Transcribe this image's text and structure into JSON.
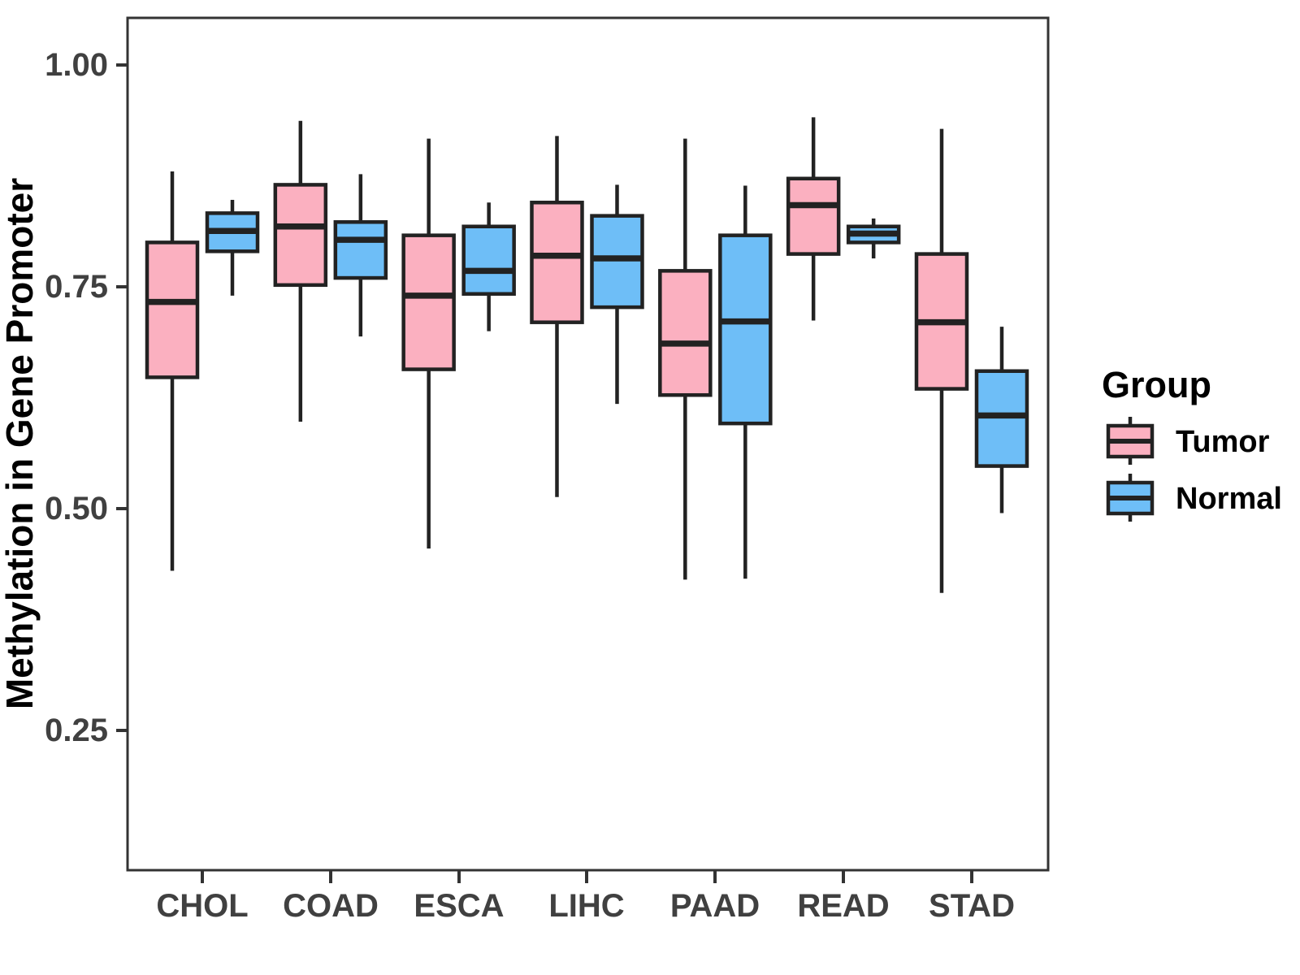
{
  "chart_data": {
    "type": "boxplot",
    "title": "",
    "xlabel": "",
    "ylabel": "Methylation in Gene Promoter",
    "categories": [
      "CHOL",
      "COAD",
      "ESCA",
      "LIHC",
      "PAAD",
      "READ",
      "STAD"
    ],
    "y_ticks": [
      "1.00",
      "0.75",
      "0.50",
      "0.25"
    ],
    "y_tick_values": [
      1.0,
      0.75,
      0.5,
      0.25
    ],
    "ylim": [
      0.09,
      1.05
    ],
    "grid": "off",
    "legend": {
      "title": "Group",
      "position": "right",
      "entries": [
        {
          "label": "Tumor",
          "color": "#FBB0C0"
        },
        {
          "label": "Normal",
          "color": "#6EBEF7"
        }
      ]
    },
    "series": [
      {
        "name": "Tumor",
        "color": "#FBB0C0",
        "boxes": [
          {
            "category": "CHOL",
            "low": 0.43,
            "q1": 0.648,
            "median": 0.733,
            "q3": 0.8,
            "high": 0.88
          },
          {
            "category": "COAD",
            "low": 0.598,
            "q1": 0.752,
            "median": 0.818,
            "q3": 0.865,
            "high": 0.937
          },
          {
            "category": "ESCA",
            "low": 0.455,
            "q1": 0.657,
            "median": 0.74,
            "q3": 0.808,
            "high": 0.917
          },
          {
            "category": "LIHC",
            "low": 0.513,
            "q1": 0.71,
            "median": 0.785,
            "q3": 0.845,
            "high": 0.92
          },
          {
            "category": "PAAD",
            "low": 0.42,
            "q1": 0.628,
            "median": 0.686,
            "q3": 0.768,
            "high": 0.917
          },
          {
            "category": "READ",
            "low": 0.712,
            "q1": 0.787,
            "median": 0.842,
            "q3": 0.872,
            "high": 0.941
          },
          {
            "category": "STAD",
            "low": 0.405,
            "q1": 0.635,
            "median": 0.71,
            "q3": 0.787,
            "high": 0.928
          }
        ]
      },
      {
        "name": "Normal",
        "color": "#6EBEF7",
        "boxes": [
          {
            "category": "CHOL",
            "low": 0.74,
            "q1": 0.79,
            "median": 0.813,
            "q3": 0.833,
            "high": 0.848
          },
          {
            "category": "COAD",
            "low": 0.694,
            "q1": 0.76,
            "median": 0.803,
            "q3": 0.823,
            "high": 0.877
          },
          {
            "category": "ESCA",
            "low": 0.7,
            "q1": 0.742,
            "median": 0.768,
            "q3": 0.818,
            "high": 0.845
          },
          {
            "category": "LIHC",
            "low": 0.618,
            "q1": 0.727,
            "median": 0.782,
            "q3": 0.83,
            "high": 0.865
          },
          {
            "category": "PAAD",
            "low": 0.421,
            "q1": 0.596,
            "median": 0.711,
            "q3": 0.808,
            "high": 0.864
          },
          {
            "category": "READ",
            "low": 0.782,
            "q1": 0.8,
            "median": 0.81,
            "q3": 0.818,
            "high": 0.827
          },
          {
            "category": "STAD",
            "low": 0.495,
            "q1": 0.548,
            "median": 0.605,
            "q3": 0.655,
            "high": 0.705
          }
        ]
      }
    ]
  },
  "colors": {
    "background": "#ffffff",
    "panel_border": "#333333",
    "box_stroke": "#222222",
    "tick_mark": "#333333",
    "tick_label": "#404040",
    "title_text": "#000000"
  }
}
